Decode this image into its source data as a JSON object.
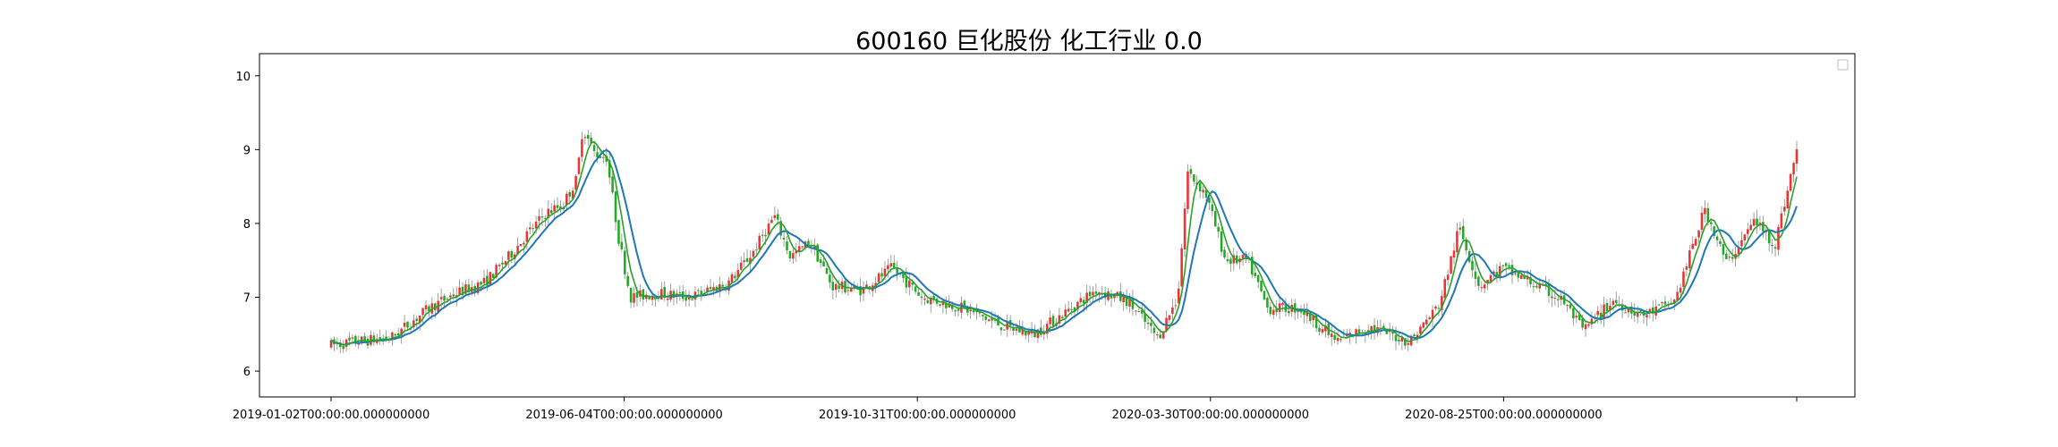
{
  "title": "600160 巨化股份 化工行业 0.0",
  "chart_data": {
    "type": "candlestick",
    "title": "600160 巨化股份 化工行业 0.0",
    "xlabel": "",
    "ylabel": "",
    "x_tick_labels": [
      "2019-01-02T00:00:00.000000000",
      "2019-06-04T00:00:00.000000000",
      "2019-10-31T00:00:00.000000000",
      "2020-03-30T00:00:00.000000000",
      "2020-08-25T00:00:00.000000000",
      ""
    ],
    "y_tick_labels": [
      "6",
      "7",
      "8",
      "9",
      "10"
    ],
    "ylim": [
      5.65,
      10.3
    ],
    "grid": false,
    "legend": {
      "placement": "top-right",
      "entries": []
    },
    "series": [
      {
        "kind": "candlestick",
        "up_color": "#ee3333",
        "down_color": "#22aa22",
        "wick_color": "#888888"
      },
      {
        "kind": "moving-average",
        "color": "#1f77b4"
      },
      {
        "kind": "moving-average",
        "color": "#2ca02c"
      }
    ],
    "close_path": [
      [
        "2019-01-02",
        6.35
      ],
      [
        "2019-01-15",
        6.4
      ],
      [
        "2019-02-01",
        6.45
      ],
      [
        "2019-02-20",
        6.85
      ],
      [
        "2019-03-05",
        7.05
      ],
      [
        "2019-03-20",
        7.2
      ],
      [
        "2019-04-01",
        7.55
      ],
      [
        "2019-04-10",
        7.85
      ],
      [
        "2019-04-20",
        8.15
      ],
      [
        "2019-04-28",
        8.25
      ],
      [
        "2019-05-05",
        8.6
      ],
      [
        "2019-05-08",
        9.3
      ],
      [
        "2019-05-14",
        8.95
      ],
      [
        "2019-05-20",
        8.9
      ],
      [
        "2019-05-26",
        7.8
      ],
      [
        "2019-06-01",
        7.0
      ],
      [
        "2019-06-15",
        7.05
      ],
      [
        "2019-07-01",
        7.0
      ],
      [
        "2019-07-20",
        7.2
      ],
      [
        "2019-08-01",
        7.6
      ],
      [
        "2019-08-12",
        8.1
      ],
      [
        "2019-08-20",
        7.55
      ],
      [
        "2019-08-30",
        7.75
      ],
      [
        "2019-09-10",
        7.15
      ],
      [
        "2019-09-25",
        7.1
      ],
      [
        "2019-10-10",
        7.4
      ],
      [
        "2019-10-25",
        7.0
      ],
      [
        "2019-11-15",
        6.85
      ],
      [
        "2019-12-05",
        6.6
      ],
      [
        "2019-12-20",
        6.5
      ],
      [
        "2020-01-05",
        6.8
      ],
      [
        "2020-01-20",
        7.1
      ],
      [
        "2020-02-05",
        6.95
      ],
      [
        "2020-02-20",
        6.45
      ],
      [
        "2020-03-01",
        7.0
      ],
      [
        "2020-03-06",
        8.7
      ],
      [
        "2020-03-15",
        8.4
      ],
      [
        "2020-03-25",
        7.5
      ],
      [
        "2020-04-05",
        7.5
      ],
      [
        "2020-04-15",
        6.85
      ],
      [
        "2020-05-01",
        6.85
      ],
      [
        "2020-05-20",
        6.4
      ],
      [
        "2020-06-05",
        6.6
      ],
      [
        "2020-06-25",
        6.4
      ],
      [
        "2020-07-10",
        6.9
      ],
      [
        "2020-07-20",
        7.95
      ],
      [
        "2020-07-30",
        7.15
      ],
      [
        "2020-08-10",
        7.4
      ],
      [
        "2020-08-25",
        7.2
      ],
      [
        "2020-09-10",
        6.95
      ],
      [
        "2020-09-20",
        6.55
      ],
      [
        "2020-10-05",
        6.95
      ],
      [
        "2020-10-20",
        6.75
      ],
      [
        "2020-11-05",
        6.95
      ],
      [
        "2020-11-20",
        8.2
      ],
      [
        "2020-12-01",
        7.45
      ],
      [
        "2020-12-15",
        8.05
      ],
      [
        "2020-12-25",
        7.7
      ],
      [
        "2021-01-05",
        9.0
      ]
    ]
  }
}
